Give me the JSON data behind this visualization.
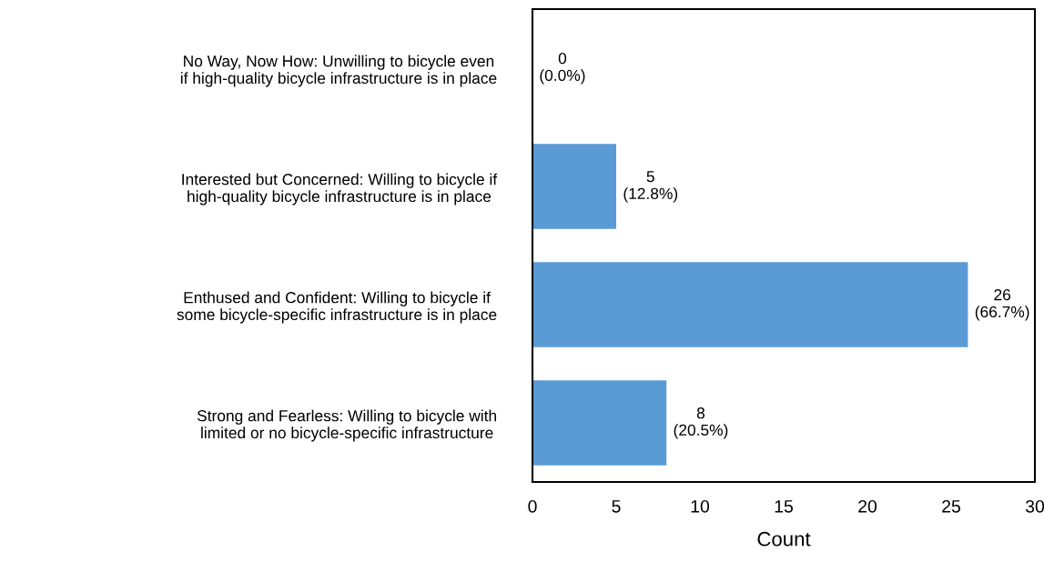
{
  "chart_data": {
    "type": "bar",
    "orientation": "horizontal",
    "categories": [
      "No Way, Now How: Unwilling to bicycle even\nif high-quality bicycle infrastructure is in place",
      "Interested but Concerned: Willing to bicycle if\nhigh-quality bicycle infrastructure is in place",
      "Enthused and Confident: Willing to bicycle if\nsome bicycle-specific infrastructure is in place",
      "Strong and Fearless: Willing to bicycle with\nlimited or no bicycle-specific infrastructure"
    ],
    "values": [
      0,
      5,
      26,
      8
    ],
    "color": "#5b9bd5",
    "value_labels": [
      "0\n(0.0%)",
      "5\n(12.8%)",
      "26\n(66.7%)",
      "8\n(20.5%)"
    ],
    "xlabel": "Count",
    "xlim": [
      0,
      30
    ],
    "xticks": [
      0,
      5,
      10,
      15,
      20,
      25,
      30
    ],
    "grid": false
  }
}
